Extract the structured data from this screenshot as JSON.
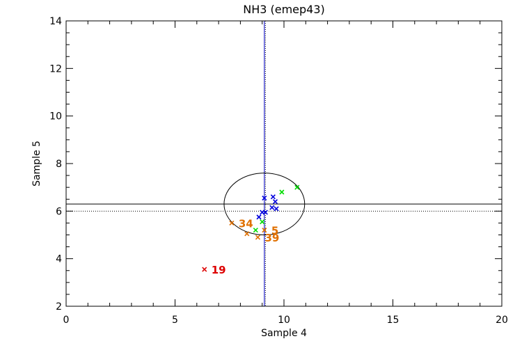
{
  "chart_data": {
    "type": "scatter",
    "title": "NH3 (emep43)",
    "xlabel": "Sample 4",
    "ylabel": "Sample 5",
    "xlim": [
      0,
      20
    ],
    "ylim": [
      2,
      14
    ],
    "x_ticks": [
      "0",
      "5",
      "10",
      "15",
      "20"
    ],
    "y_ticks": [
      "2",
      "4",
      "6",
      "8",
      "10",
      "12",
      "14"
    ],
    "reference_lines": {
      "vertical_solid_x": 9.1,
      "vertical_dotted_x": 9.1,
      "horizontal_solid_y": 6.3,
      "horizontal_dotted_y": 6.0
    },
    "ellipse": {
      "cx": 9.1,
      "cy": 6.3,
      "rx": 1.85,
      "ry": 1.3
    },
    "series": [
      {
        "color": "#0000dd",
        "points": [
          {
            "x": 9.1,
            "y": 6.55
          },
          {
            "x": 9.5,
            "y": 6.6
          },
          {
            "x": 9.6,
            "y": 6.4
          },
          {
            "x": 9.45,
            "y": 6.15
          },
          {
            "x": 9.65,
            "y": 6.1
          },
          {
            "x": 9.0,
            "y": 5.95
          },
          {
            "x": 9.15,
            "y": 5.95
          },
          {
            "x": 8.85,
            "y": 5.75
          }
        ]
      },
      {
        "color": "#00dd00",
        "points": [
          {
            "x": 10.6,
            "y": 7.0
          },
          {
            "x": 9.9,
            "y": 6.8
          },
          {
            "x": 9.0,
            "y": 5.55
          },
          {
            "x": 8.7,
            "y": 5.2
          }
        ]
      },
      {
        "color": "#e07000",
        "points": [
          {
            "x": 7.6,
            "y": 5.5,
            "label": "34"
          },
          {
            "x": 8.3,
            "y": 5.05
          },
          {
            "x": 8.8,
            "y": 4.9,
            "label": "39"
          },
          {
            "x": 9.1,
            "y": 5.2,
            "label": "5"
          }
        ]
      },
      {
        "color": "#dd0000",
        "points": [
          {
            "x": 6.35,
            "y": 3.55,
            "label": "19"
          }
        ]
      }
    ]
  }
}
